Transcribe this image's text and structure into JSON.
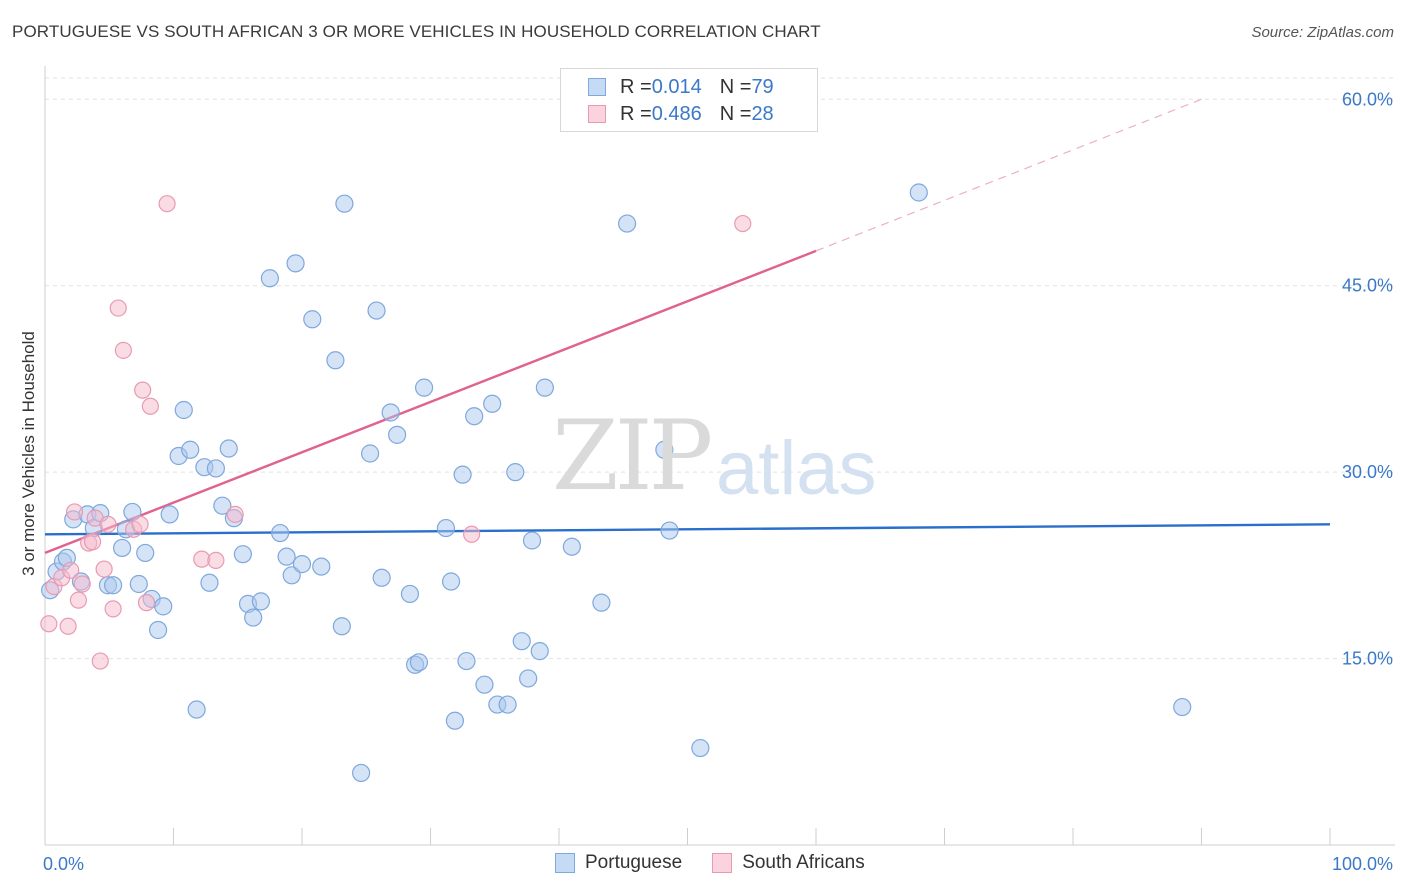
{
  "title": "PORTUGUESE VS SOUTH AFRICAN 3 OR MORE VEHICLES IN HOUSEHOLD CORRELATION CHART",
  "source": "Source: ZipAtlas.com",
  "watermark": {
    "zip": "ZIP",
    "atlas": "atlas"
  },
  "legend_top": [
    {
      "r_label": "R = ",
      "r_value": "0.014",
      "n_label": "N = ",
      "n_value": "79",
      "color": "#a9c8ee"
    },
    {
      "r_label": "R = ",
      "r_value": "0.486",
      "n_label": "N = ",
      "n_value": "28",
      "color": "#f5b9cb"
    }
  ],
  "legend_bottom": [
    {
      "name": "Portuguese",
      "color": "#a9c8ee"
    },
    {
      "name": "South Africans",
      "color": "#f5b9cb"
    }
  ],
  "chart_data": {
    "type": "scatter",
    "title": "PORTUGUESE VS SOUTH AFRICAN 3 OR MORE VEHICLES IN HOUSEHOLD CORRELATION CHART",
    "xlabel": "",
    "ylabel": "3 or more Vehicles in Household",
    "xlim": [
      0,
      100
    ],
    "ylim": [
      0,
      63
    ],
    "x_tick_labels": [
      "0.0%",
      "100.0%"
    ],
    "y_ticks": [
      15,
      30,
      45,
      60
    ],
    "y_tick_labels": [
      "15.0%",
      "30.0%",
      "45.0%",
      "60.0%"
    ],
    "grid": true,
    "legend_position": "top-center",
    "series": [
      {
        "name": "Portuguese",
        "color": "#a9c8ee",
        "stroke": "#7fa8dc",
        "trend": {
          "x": [
            0,
            100
          ],
          "y": [
            25.0,
            25.8
          ],
          "color": "#2a6fcc"
        },
        "points": [
          [
            0.4,
            20.5
          ],
          [
            0.9,
            22.0
          ],
          [
            1.4,
            22.8
          ],
          [
            1.7,
            23.1
          ],
          [
            2.2,
            26.2
          ],
          [
            2.8,
            21.2
          ],
          [
            3.3,
            26.6
          ],
          [
            3.8,
            25.5
          ],
          [
            4.3,
            26.7
          ],
          [
            4.9,
            20.9
          ],
          [
            5.3,
            20.9
          ],
          [
            6.0,
            23.9
          ],
          [
            6.3,
            25.4
          ],
          [
            6.8,
            26.8
          ],
          [
            7.3,
            21.0
          ],
          [
            7.8,
            23.5
          ],
          [
            8.3,
            19.8
          ],
          [
            8.8,
            17.3
          ],
          [
            9.2,
            19.2
          ],
          [
            9.7,
            26.6
          ],
          [
            10.4,
            31.3
          ],
          [
            10.8,
            35.0
          ],
          [
            11.3,
            31.8
          ],
          [
            11.8,
            10.9
          ],
          [
            12.4,
            30.4
          ],
          [
            12.8,
            21.1
          ],
          [
            13.3,
            30.3
          ],
          [
            13.8,
            27.3
          ],
          [
            14.3,
            31.9
          ],
          [
            14.7,
            26.3
          ],
          [
            15.4,
            23.4
          ],
          [
            15.8,
            19.4
          ],
          [
            16.2,
            18.3
          ],
          [
            16.8,
            19.6
          ],
          [
            17.5,
            45.6
          ],
          [
            18.3,
            25.1
          ],
          [
            18.8,
            23.2
          ],
          [
            19.2,
            21.7
          ],
          [
            19.5,
            46.8
          ],
          [
            20.0,
            22.6
          ],
          [
            20.8,
            42.3
          ],
          [
            21.5,
            22.4
          ],
          [
            22.6,
            39.0
          ],
          [
            23.1,
            17.6
          ],
          [
            23.3,
            51.6
          ],
          [
            24.6,
            5.8
          ],
          [
            25.3,
            31.5
          ],
          [
            25.8,
            43.0
          ],
          [
            26.2,
            21.5
          ],
          [
            26.9,
            34.8
          ],
          [
            27.4,
            33.0
          ],
          [
            28.4,
            20.2
          ],
          [
            28.8,
            14.5
          ],
          [
            29.1,
            14.7
          ],
          [
            29.5,
            36.8
          ],
          [
            31.2,
            25.5
          ],
          [
            31.6,
            21.2
          ],
          [
            31.9,
            10.0
          ],
          [
            32.5,
            29.8
          ],
          [
            32.8,
            14.8
          ],
          [
            33.4,
            34.5
          ],
          [
            34.2,
            12.9
          ],
          [
            34.8,
            35.5
          ],
          [
            35.2,
            11.3
          ],
          [
            36.0,
            11.3
          ],
          [
            36.6,
            30.0
          ],
          [
            37.1,
            16.4
          ],
          [
            37.6,
            13.4
          ],
          [
            37.9,
            24.5
          ],
          [
            38.5,
            15.6
          ],
          [
            38.9,
            36.8
          ],
          [
            41.0,
            24.0
          ],
          [
            43.3,
            19.5
          ],
          [
            45.3,
            50.0
          ],
          [
            48.2,
            31.8
          ],
          [
            48.6,
            25.3
          ],
          [
            51.0,
            7.8
          ],
          [
            68.0,
            52.5
          ],
          [
            88.5,
            11.1
          ]
        ]
      },
      {
        "name": "South Africans",
        "color": "#f5b9cb",
        "stroke": "#e99ab3",
        "trend": {
          "x": [
            0,
            60
          ],
          "y": [
            23.5,
            47.8
          ],
          "dash_to": [
            90,
            60.0
          ],
          "color": "#e0628e"
        },
        "points": [
          [
            0.3,
            17.8
          ],
          [
            0.7,
            20.8
          ],
          [
            1.3,
            21.5
          ],
          [
            1.8,
            17.6
          ],
          [
            2.0,
            22.1
          ],
          [
            2.3,
            26.8
          ],
          [
            2.6,
            19.7
          ],
          [
            2.9,
            21.0
          ],
          [
            3.4,
            24.3
          ],
          [
            3.7,
            24.4
          ],
          [
            3.9,
            26.3
          ],
          [
            4.3,
            14.8
          ],
          [
            4.6,
            22.2
          ],
          [
            4.9,
            25.8
          ],
          [
            5.3,
            19.0
          ],
          [
            5.7,
            43.2
          ],
          [
            6.1,
            39.8
          ],
          [
            6.9,
            25.4
          ],
          [
            7.4,
            25.8
          ],
          [
            7.6,
            36.6
          ],
          [
            7.9,
            19.5
          ],
          [
            8.2,
            35.3
          ],
          [
            9.5,
            51.6
          ],
          [
            12.2,
            23.0
          ],
          [
            13.3,
            22.9
          ],
          [
            14.8,
            26.6
          ],
          [
            33.2,
            25.0
          ],
          [
            54.3,
            50.0
          ]
        ]
      }
    ]
  }
}
